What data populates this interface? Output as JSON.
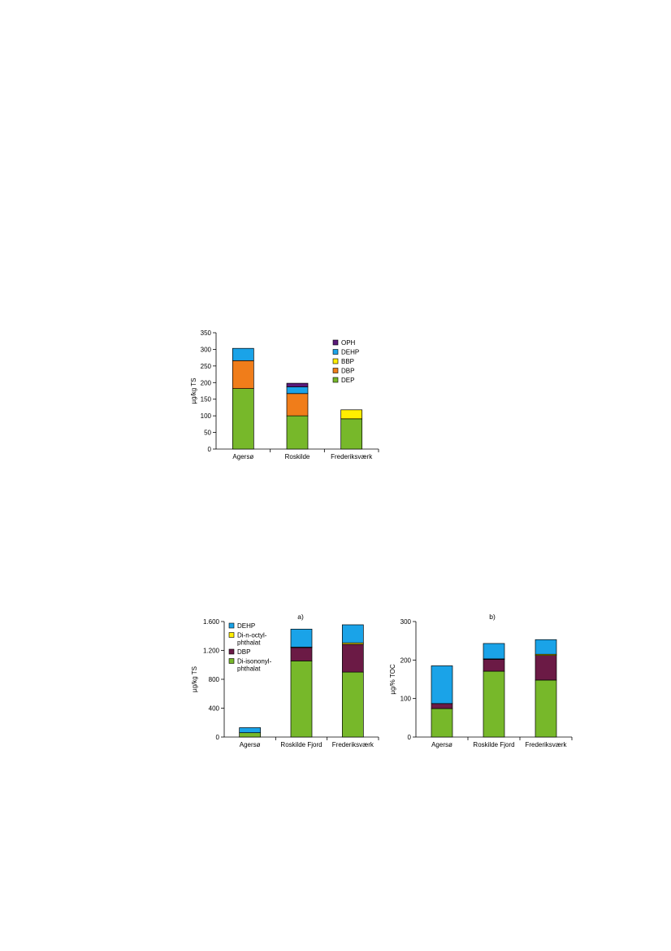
{
  "chart_data": [
    {
      "type": "bar",
      "stacked": true,
      "title": "",
      "xlabel": "",
      "ylabel": "µg/kg TS",
      "ylim": [
        0,
        350
      ],
      "yticks": [
        0,
        50,
        100,
        150,
        200,
        250,
        300,
        350
      ],
      "ytick_labels": [
        "0",
        "50",
        "100",
        "150",
        "200",
        "250",
        "300",
        "350"
      ],
      "categories": [
        "Agersø",
        "Roskilde",
        "Frederiksværk"
      ],
      "series": [
        {
          "name": "DEP",
          "color": "#77b82a",
          "values": [
            182,
            100,
            91
          ]
        },
        {
          "name": "DBP",
          "color": "#f07d1a",
          "values": [
            84,
            67,
            0
          ]
        },
        {
          "name": "BBP",
          "color": "#ffee00",
          "values": [
            0,
            0,
            27
          ]
        },
        {
          "name": "DEHP",
          "color": "#1aa3e8",
          "values": [
            37,
            20,
            0
          ]
        },
        {
          "name": "OPH",
          "color": "#5a1a7a",
          "values": [
            0,
            11,
            0
          ]
        }
      ],
      "legend_position": "top-right",
      "legend_order": [
        "OPH",
        "DEHP",
        "BBP",
        "DBP",
        "DEP"
      ],
      "grid": false
    },
    {
      "type": "bar",
      "stacked": true,
      "title": "a)",
      "xlabel": "",
      "ylabel": "µg/kg TS",
      "ylim": [
        0,
        1600
      ],
      "yticks": [
        0,
        400,
        800,
        1200,
        1600
      ],
      "ytick_labels": [
        "0",
        "400",
        "800",
        "1.200",
        "1.600"
      ],
      "categories": [
        "Agersø",
        "Roskilde Fjord",
        "Frederiksværk"
      ],
      "series": [
        {
          "name": "Di-isononyl-phthalat",
          "color": "#77b82a",
          "values": [
            60,
            1055,
            900
          ]
        },
        {
          "name": "DBP",
          "color": "#6b1a45",
          "values": [
            0,
            185,
            385
          ]
        },
        {
          "name": "Di-n-octyl-phthalat",
          "color": "#ffee00",
          "values": [
            0,
            5,
            20
          ]
        },
        {
          "name": "DEHP",
          "color": "#1aa3e8",
          "values": [
            70,
            250,
            250
          ]
        }
      ],
      "legend_position": "top-left",
      "legend_order": [
        "DEHP",
        "Di-n-octyl-phthalat",
        "DBP",
        "Di-isononyl-phthalat"
      ],
      "legend_labels": [
        [
          "DEHP"
        ],
        [
          "Di-n-octyl-",
          "phthalat"
        ],
        [
          "DBP"
        ],
        [
          "Di-isononyl-",
          "phthalat"
        ]
      ],
      "grid": false
    },
    {
      "type": "bar",
      "stacked": true,
      "title": "b)",
      "xlabel": "",
      "ylabel": "µg/% TOC",
      "ylim": [
        0,
        300
      ],
      "yticks": [
        0,
        100,
        200,
        300
      ],
      "ytick_labels": [
        "0",
        "100",
        "200",
        "300"
      ],
      "categories": [
        "Agersø",
        "Roskilde Fjord",
        "Frederiksværk"
      ],
      "series": [
        {
          "name": "Di-isononyl-phthalat",
          "color": "#77b82a",
          "values": [
            74,
            171,
            148
          ]
        },
        {
          "name": "DBP",
          "color": "#6b1a45",
          "values": [
            13,
            31,
            64
          ]
        },
        {
          "name": "Di-n-octyl-phthalat",
          "color": "#ffee00",
          "values": [
            0,
            1,
            3
          ]
        },
        {
          "name": "DEHP",
          "color": "#1aa3e8",
          "values": [
            98,
            40,
            38
          ]
        }
      ],
      "grid": false
    }
  ]
}
